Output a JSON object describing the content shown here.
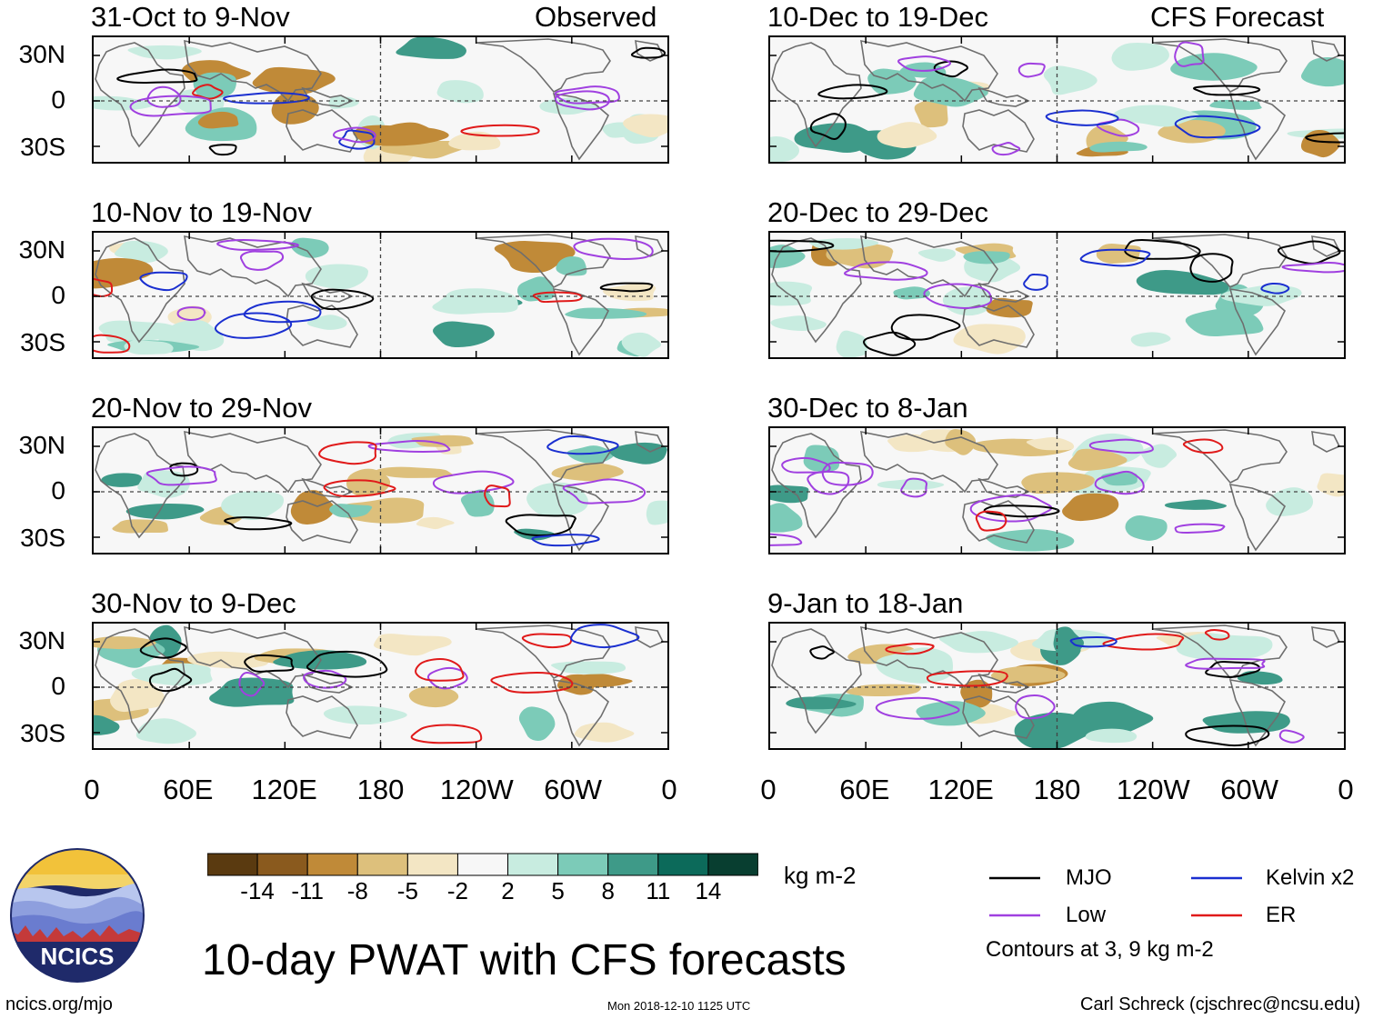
{
  "figure": {
    "title": "10-day PWAT with CFS forecasts",
    "units": "kg m-2",
    "url": "ncics.org/mjo",
    "timestamp": "Mon 2018-12-10 1125 UTC",
    "author": "Carl Schreck (cjschrec@ncsu.edu)",
    "logo_text": "NCICS",
    "observed_label": "Observed",
    "forecast_label": "CFS Forecast",
    "contour_note": "Contours at 3, 9 kg m-2"
  },
  "panels": {
    "observed": [
      {
        "period": "31-Oct to 9-Nov"
      },
      {
        "period": "10-Nov to 19-Nov"
      },
      {
        "period": "20-Nov to 29-Nov"
      },
      {
        "period": "30-Nov to 9-Dec"
      }
    ],
    "forecast": [
      {
        "period": "10-Dec to 19-Dec"
      },
      {
        "period": "20-Dec to 29-Dec"
      },
      {
        "period": "30-Dec to 8-Jan"
      },
      {
        "period": "9-Jan to 18-Jan"
      }
    ]
  },
  "axes": {
    "lat_ticks": [
      "30N",
      "0",
      "30S"
    ],
    "lon_ticks": [
      "0",
      "60E",
      "120E",
      "180",
      "120W",
      "60W",
      "0"
    ]
  },
  "colorbar": {
    "labels": [
      "-14",
      "-11",
      "-8",
      "-5",
      "-2",
      "2",
      "5",
      "8",
      "11",
      "14"
    ],
    "colors": [
      "#5a3a10",
      "#8a5a1e",
      "#c08a38",
      "#ddc07c",
      "#f3e6c4",
      "#f7f7f7",
      "#c8ece0",
      "#7ccbb8",
      "#3e9a88",
      "#0c6a5a",
      "#083e30"
    ]
  },
  "legend": {
    "items": [
      {
        "label": "MJO",
        "color": "#000000"
      },
      {
        "label": "Kelvin x2",
        "color": "#1a2fd0"
      },
      {
        "label": "Low",
        "color": "#a040e0"
      },
      {
        "label": "ER",
        "color": "#e01a1a"
      }
    ]
  }
}
